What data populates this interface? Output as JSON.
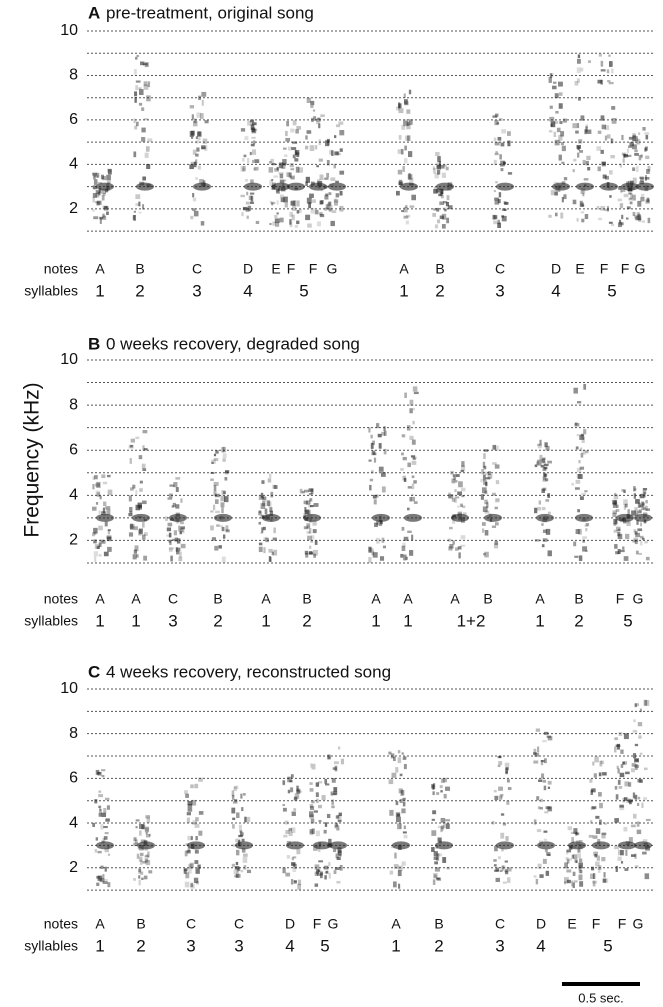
{
  "y_axis_label": "Frequency (kHz)",
  "scale_bar": "0.5 sec.",
  "panels": [
    {
      "letter": "A",
      "title": "pre-treatment, original song",
      "ylim": [
        0.6,
        10
      ],
      "yticks": [
        2,
        4,
        6,
        8,
        10
      ],
      "grid_lines": [
        1,
        2,
        3,
        4,
        5,
        6,
        7,
        8,
        9,
        10
      ],
      "notes_label": "notes",
      "syllables_label": "syllables",
      "notes": [
        "A",
        "B",
        "C",
        "D",
        "E",
        "F",
        "F",
        "G",
        "A",
        "B",
        "C",
        "D",
        "E",
        "F",
        "F",
        "G"
      ],
      "syllables": [
        "1",
        "2",
        "3",
        "4",
        "5",
        "1",
        "2",
        "3",
        "4",
        "5"
      ]
    },
    {
      "letter": "B",
      "title": "0 weeks recovery, degraded song",
      "ylim": [
        0.6,
        10
      ],
      "yticks": [
        2,
        4,
        6,
        8,
        10
      ],
      "grid_lines": [
        1,
        2,
        3,
        4,
        5,
        6,
        7,
        8,
        9,
        10
      ],
      "notes_label": "notes",
      "syllables_label": "syllables",
      "notes": [
        "A",
        "A",
        "C",
        "B",
        "A",
        "B",
        "A",
        "A",
        "A",
        "B",
        "A",
        "B",
        "F",
        "G"
      ],
      "syllables": [
        "1",
        "1",
        "3",
        "2",
        "1",
        "2",
        "1",
        "1",
        "1+2",
        "1",
        "2",
        "5"
      ]
    },
    {
      "letter": "C",
      "title": "4 weeks recovery, reconstructed song",
      "ylim": [
        0.6,
        10
      ],
      "yticks": [
        2,
        4,
        6,
        8,
        10
      ],
      "grid_lines": [
        1,
        2,
        3,
        4,
        5,
        6,
        7,
        8,
        9,
        10
      ],
      "notes_label": "notes",
      "syllables_label": "syllables",
      "notes": [
        "A",
        "B",
        "C",
        "C",
        "D",
        "F",
        "G",
        "A",
        "B",
        "C",
        "D",
        "E",
        "F",
        "F",
        "G"
      ],
      "syllables": [
        "1",
        "2",
        "3",
        "3",
        "4",
        "5",
        "1",
        "2",
        "3",
        "4",
        "5"
      ]
    }
  ]
}
